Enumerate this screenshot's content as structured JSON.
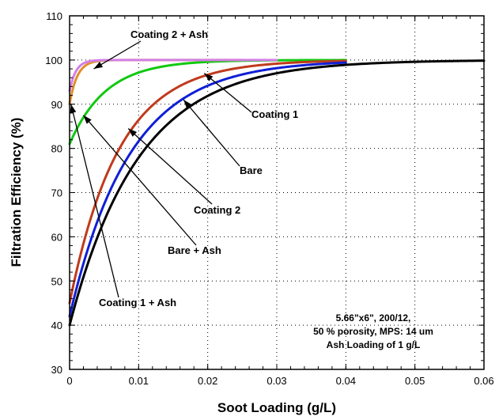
{
  "chart_data": {
    "type": "line",
    "xlabel": "Soot Loading (g/L)",
    "ylabel": "Filtration Efficiency (%)",
    "xlim": [
      0,
      0.06
    ],
    "ylim": [
      30,
      110
    ],
    "x_ticks": [
      "0",
      "0.01",
      "0.02",
      "0.03",
      "0.04",
      "0.05",
      "0.06"
    ],
    "y_ticks": [
      "30",
      "40",
      "50",
      "60",
      "70",
      "80",
      "90",
      "100",
      "110"
    ],
    "grid": true,
    "series": [
      {
        "name": "Coating 1",
        "color": "#11c911",
        "start": 81,
        "k": 190,
        "xmax": 0.04
      },
      {
        "name": "Bare + Ash",
        "color": "#e0902c",
        "start": 90,
        "k": 900,
        "xmax": 0.025
      },
      {
        "name": "Coating 2 + Ash",
        "color": "#d47fe6",
        "start": 93,
        "k": 1100,
        "xmax": 0.03
      },
      {
        "name": "Coating 2",
        "color": "#c03a1c",
        "start": 45,
        "k": 140,
        "xmax": 0.04
      },
      {
        "name": "Bare",
        "color": "#0f1fd6",
        "start": 42,
        "k": 115,
        "xmax": 0.04
      },
      {
        "name": "Coating 1 + Ash",
        "color": "#000000",
        "start": 40,
        "k": 100,
        "xmax": 0.06
      }
    ],
    "annotations": [
      {
        "text": "Coating 2 + Ash",
        "tip": [
          0.0035,
          98
        ]
      },
      {
        "text": "Coating 1",
        "tip": [
          0.0195,
          97
        ]
      },
      {
        "text": "Bare",
        "tip": [
          0.0165,
          91
        ]
      },
      {
        "text": "Coating 2",
        "tip": [
          0.0085,
          84.5
        ]
      },
      {
        "text": "Bare + Ash",
        "tip": [
          0.002,
          87.5
        ]
      },
      {
        "text": "Coating 1 + Ash",
        "tip": [
          0.0002,
          90
        ]
      }
    ],
    "note": [
      "5.66\"x6\", 200/12,",
      "50 % porosity, MPS: 14 um",
      "Ash Loading of 1 g/L"
    ]
  }
}
